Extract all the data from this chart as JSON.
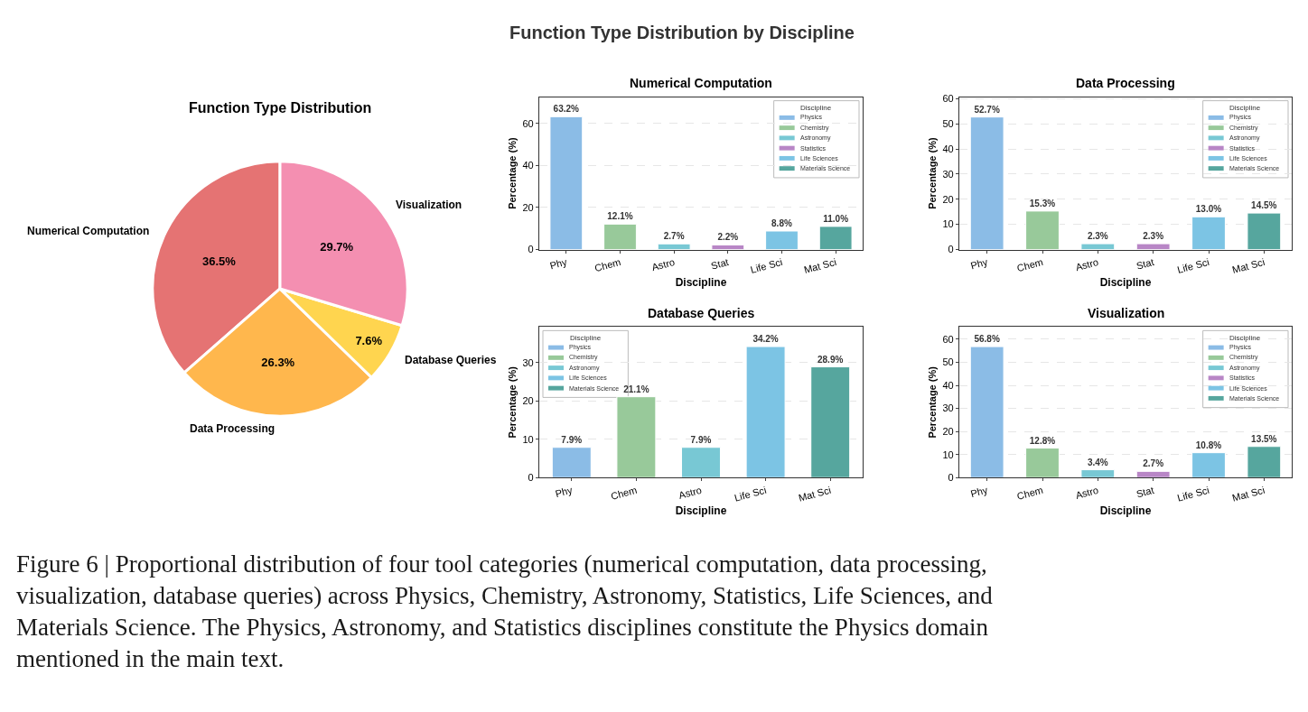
{
  "chart_data": [
    {
      "type": "other",
      "title": "Function Type Distribution by Discipline",
      "annotations": [
        "Figure 6 | Proportional distribution of four tool categories (numerical computation, data processing, visualization, database queries) across Physics, Chemistry, Astronomy, Statistics, Life Sciences, and Materials Science. The Physics, Astronomy, and Statistics disciplines constitute the Physics domain mentioned in the main text."
      ]
    },
    {
      "type": "pie",
      "title": "Function Type Distribution",
      "categories": [
        "Numerical Computation",
        "Data Processing",
        "Database Queries",
        "Visualization"
      ],
      "values": [
        36.5,
        26.3,
        7.6,
        29.7
      ],
      "colors": [
        "#e57373",
        "#ffb74d",
        "#ffd54f",
        "#f48fb1"
      ],
      "value_labels": [
        "36.5%",
        "26.3%",
        "7.6%",
        "29.7%"
      ]
    },
    {
      "type": "bar",
      "title": "Numerical Computation",
      "xlabel": "Discipline",
      "ylabel": "Percentage (%)",
      "legend_title": "Discipline",
      "legend": "top right",
      "grid": "y",
      "ylim": [
        0,
        72.5
      ],
      "yticks": [
        0,
        20,
        40,
        60
      ],
      "categories": [
        "Phy",
        "Chem",
        "Astro",
        "Stat",
        "Life Sci",
        "Mat Sci"
      ],
      "series": [
        {
          "name": "Physics",
          "color": "#8bbce6",
          "values": [
            63.2,
            null,
            null,
            null,
            null,
            null
          ],
          "value_labels": [
            "63.2%",
            null,
            null,
            null,
            null,
            null
          ]
        },
        {
          "name": "Chemistry",
          "color": "#98c99a",
          "values": [
            null,
            12.1,
            null,
            null,
            null,
            null
          ],
          "value_labels": [
            null,
            "12.1%",
            null,
            null,
            null,
            null
          ]
        },
        {
          "name": "Astronomy",
          "color": "#78c8d4",
          "values": [
            null,
            null,
            2.7,
            null,
            null,
            null
          ],
          "value_labels": [
            null,
            null,
            "2.7%",
            null,
            null,
            null
          ]
        },
        {
          "name": "Statistics",
          "color": "#b886c6",
          "values": [
            null,
            null,
            null,
            2.2,
            null,
            null
          ],
          "value_labels": [
            null,
            null,
            null,
            "2.2%",
            null,
            null
          ]
        },
        {
          "name": "Life Sciences",
          "color": "#7cc4e4",
          "values": [
            null,
            null,
            null,
            null,
            8.8,
            null
          ],
          "value_labels": [
            null,
            null,
            null,
            null,
            "8.8%",
            null
          ]
        },
        {
          "name": "Materials Science",
          "color": "#56a69e",
          "values": [
            null,
            null,
            null,
            null,
            null,
            11.0
          ],
          "value_labels": [
            null,
            null,
            null,
            null,
            null,
            "11.0%"
          ]
        }
      ]
    },
    {
      "type": "bar",
      "title": "Data Processing",
      "xlabel": "Discipline",
      "ylabel": "Percentage (%)",
      "legend_title": "Discipline",
      "legend": "top right",
      "grid": "y",
      "ylim": [
        0,
        60.6
      ],
      "yticks": [
        0,
        10,
        20,
        30,
        40,
        50,
        60
      ],
      "categories": [
        "Phy",
        "Chem",
        "Astro",
        "Stat",
        "Life Sci",
        "Mat Sci"
      ],
      "series": [
        {
          "name": "Physics",
          "color": "#8bbce6",
          "values": [
            52.7,
            null,
            null,
            null,
            null,
            null
          ],
          "value_labels": [
            "52.7%",
            null,
            null,
            null,
            null,
            null
          ]
        },
        {
          "name": "Chemistry",
          "color": "#98c99a",
          "values": [
            null,
            15.3,
            null,
            null,
            null,
            null
          ],
          "value_labels": [
            null,
            "15.3%",
            null,
            null,
            null,
            null
          ]
        },
        {
          "name": "Astronomy",
          "color": "#78c8d4",
          "values": [
            null,
            null,
            2.3,
            null,
            null,
            null
          ],
          "value_labels": [
            null,
            null,
            "2.3%",
            null,
            null,
            null
          ]
        },
        {
          "name": "Statistics",
          "color": "#b886c6",
          "values": [
            null,
            null,
            null,
            2.3,
            null,
            null
          ],
          "value_labels": [
            null,
            null,
            null,
            "2.3%",
            null,
            null
          ]
        },
        {
          "name": "Life Sciences",
          "color": "#7cc4e4",
          "values": [
            null,
            null,
            null,
            null,
            13.0,
            null
          ],
          "value_labels": [
            null,
            null,
            null,
            null,
            "13.0%",
            null
          ]
        },
        {
          "name": "Materials Science",
          "color": "#56a69e",
          "values": [
            null,
            null,
            null,
            null,
            null,
            14.5
          ],
          "value_labels": [
            null,
            null,
            null,
            null,
            null,
            "14.5%"
          ]
        }
      ]
    },
    {
      "type": "bar",
      "title": "Database Queries",
      "xlabel": "Discipline",
      "ylabel": "Percentage (%)",
      "legend_title": "Discipline",
      "legend": "top left",
      "grid": "y",
      "ylim": [
        0,
        39.3
      ],
      "yticks": [
        0,
        10,
        20,
        30
      ],
      "categories": [
        "Phy",
        "Chem",
        "Astro",
        "Life Sci",
        "Mat Sci"
      ],
      "series": [
        {
          "name": "Physics",
          "color": "#8bbce6",
          "values": [
            7.9,
            null,
            null,
            null,
            null
          ],
          "value_labels": [
            "7.9%",
            null,
            null,
            null,
            null
          ]
        },
        {
          "name": "Chemistry",
          "color": "#98c99a",
          "values": [
            null,
            21.1,
            null,
            null,
            null
          ],
          "value_labels": [
            null,
            "21.1%",
            null,
            null,
            null
          ]
        },
        {
          "name": "Astronomy",
          "color": "#78c8d4",
          "values": [
            null,
            null,
            7.9,
            null,
            null
          ],
          "value_labels": [
            null,
            null,
            "7.9%",
            null,
            null
          ]
        },
        {
          "name": "Life Sciences",
          "color": "#7cc4e4",
          "values": [
            null,
            null,
            null,
            34.2,
            null
          ],
          "value_labels": [
            null,
            null,
            null,
            "34.2%",
            null
          ]
        },
        {
          "name": "Materials Science",
          "color": "#56a69e",
          "values": [
            null,
            null,
            null,
            null,
            28.9
          ],
          "value_labels": [
            null,
            null,
            null,
            null,
            "28.9%"
          ]
        }
      ]
    },
    {
      "type": "bar",
      "title": "Visualization",
      "xlabel": "Discipline",
      "ylabel": "Percentage (%)",
      "legend_title": "Discipline",
      "legend": "top right",
      "grid": "y",
      "ylim": [
        0,
        65.3
      ],
      "yticks": [
        0,
        10,
        20,
        30,
        40,
        50,
        60
      ],
      "categories": [
        "Phy",
        "Chem",
        "Astro",
        "Stat",
        "Life Sci",
        "Mat Sci"
      ],
      "series": [
        {
          "name": "Physics",
          "color": "#8bbce6",
          "values": [
            56.8,
            null,
            null,
            null,
            null,
            null
          ],
          "value_labels": [
            "56.8%",
            null,
            null,
            null,
            null,
            null
          ]
        },
        {
          "name": "Chemistry",
          "color": "#98c99a",
          "values": [
            null,
            12.8,
            null,
            null,
            null,
            null
          ],
          "value_labels": [
            null,
            "12.8%",
            null,
            null,
            null,
            null
          ]
        },
        {
          "name": "Astronomy",
          "color": "#78c8d4",
          "values": [
            null,
            null,
            3.4,
            null,
            null,
            null
          ],
          "value_labels": [
            null,
            null,
            "3.4%",
            null,
            null,
            null
          ]
        },
        {
          "name": "Statistics",
          "color": "#b886c6",
          "values": [
            null,
            null,
            null,
            2.7,
            null,
            null
          ],
          "value_labels": [
            null,
            null,
            null,
            "2.7%",
            null,
            null
          ]
        },
        {
          "name": "Life Sciences",
          "color": "#7cc4e4",
          "values": [
            null,
            null,
            null,
            null,
            10.8,
            null
          ],
          "value_labels": [
            null,
            null,
            null,
            null,
            "10.8%",
            null
          ]
        },
        {
          "name": "Materials Science",
          "color": "#56a69e",
          "values": [
            null,
            null,
            null,
            null,
            null,
            13.5
          ],
          "value_labels": [
            null,
            null,
            null,
            null,
            null,
            "13.5%"
          ]
        }
      ]
    }
  ]
}
